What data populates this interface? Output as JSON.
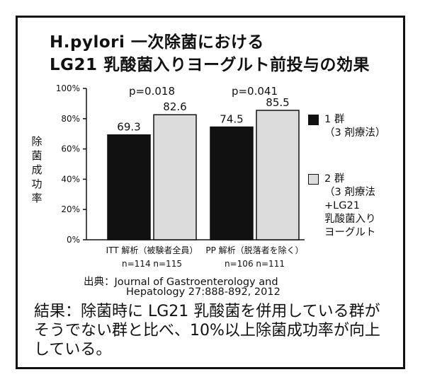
{
  "heading": {
    "line1": "H.pylori 一次除菌における",
    "line2": "LG21 乳酸菌入りヨーグルト前投与の効果"
  },
  "colors": {
    "group1": "#111111",
    "group2": "#dcdcdc",
    "stroke": "#111111"
  },
  "chart_data": {
    "type": "bar",
    "categories": [
      "ITT 解析（被験者全員）",
      "PP 解析（脱落者を除く）"
    ],
    "category_n": [
      "n=114 n=115",
      "n=106 n=111"
    ],
    "series": [
      {
        "name": "1 群\n（3 剤療法）",
        "values": [
          69.3,
          74.5
        ]
      },
      {
        "name": "2 群\n（3 剤療法\n+LG21\n乳酸菌入り\nヨーグルト",
        "values": [
          82.6,
          85.5
        ]
      }
    ],
    "value_labels": [
      [
        "69.3",
        "74.5"
      ],
      [
        "82.6",
        "85.5"
      ]
    ],
    "p_values": [
      "p=0.018",
      "p=0.041"
    ],
    "ylabel": "除菌成功率",
    "yticks": [
      "0%",
      "20%",
      "40%",
      "60%",
      "80%",
      "100%"
    ],
    "ylim": [
      0,
      100
    ],
    "legend_position": "right"
  },
  "source": {
    "line1": "出典：Journal of Gastroenterology and",
    "line2": "Hepatology 27:888-892, 2012"
  },
  "result_text": "結果：除菌時に LG21 乳酸菌を併用している群がそうでない群と比べ、10%以上除菌成功率が向上している。"
}
